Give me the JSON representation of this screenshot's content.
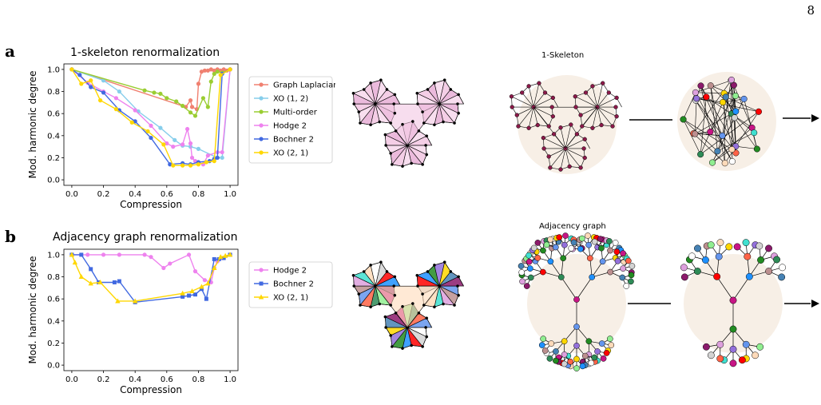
{
  "page_number": "8",
  "panel_a": {
    "label": "a",
    "title": "1-skeleton renormalization",
    "diagram_title": "1-Skeleton",
    "chart_data": {
      "type": "line",
      "title": "1-skeleton renormalization",
      "xlabel": "Compression",
      "ylabel": "Mod. harmonic degree",
      "xlim": [
        -0.05,
        1.05
      ],
      "ylim": [
        -0.05,
        1.05
      ],
      "xticks": [
        "0.0",
        "0.2",
        "0.4",
        "0.6",
        "0.8",
        "1.0"
      ],
      "yticks": [
        "0.0",
        "0.2",
        "0.4",
        "0.6",
        "0.8",
        "1.0"
      ],
      "legend_position": "outside-right",
      "series": [
        {
          "name": "Graph Laplacian",
          "color": "#f08070",
          "marker": "circle",
          "x": [
            0.0,
            0.72,
            0.75,
            0.76,
            0.79,
            0.8,
            0.82,
            0.84,
            0.86,
            0.88,
            0.9,
            0.92,
            0.94,
            0.96,
            0.98,
            1.0
          ],
          "y": [
            1.0,
            0.66,
            0.72,
            0.66,
            0.64,
            0.87,
            0.98,
            0.99,
            0.99,
            1.0,
            0.99,
            1.0,
            0.99,
            1.0,
            0.99,
            1.0
          ]
        },
        {
          "name": "XO (1, 2)",
          "color": "#87ceeb",
          "marker": "circle",
          "x": [
            0.0,
            0.2,
            0.3,
            0.42,
            0.56,
            0.65,
            0.7,
            0.75,
            0.8,
            0.92,
            0.95,
            1.0
          ],
          "y": [
            1.0,
            0.9,
            0.8,
            0.62,
            0.47,
            0.36,
            0.31,
            0.3,
            0.28,
            0.2,
            0.2,
            1.0
          ]
        },
        {
          "name": "Multi-order",
          "color": "#9acd32",
          "marker": "circle",
          "x": [
            0.0,
            0.46,
            0.52,
            0.56,
            0.6,
            0.66,
            0.7,
            0.75,
            0.78,
            0.83,
            0.86,
            0.88,
            0.9,
            0.92,
            0.95,
            1.0
          ],
          "y": [
            1.0,
            0.81,
            0.79,
            0.78,
            0.74,
            0.71,
            0.67,
            0.61,
            0.58,
            0.74,
            0.66,
            0.89,
            0.96,
            0.98,
            0.97,
            1.0
          ]
        },
        {
          "name": "Hodge 2",
          "color": "#ee82ee",
          "marker": "circle",
          "x": [
            0.0,
            0.1,
            0.2,
            0.28,
            0.4,
            0.5,
            0.6,
            0.64,
            0.7,
            0.73,
            0.75,
            0.76,
            0.78,
            0.83,
            0.86,
            0.92,
            0.95,
            1.0
          ],
          "y": [
            1.0,
            0.88,
            0.8,
            0.74,
            0.63,
            0.49,
            0.33,
            0.3,
            0.32,
            0.46,
            0.33,
            0.2,
            0.17,
            0.14,
            0.22,
            0.25,
            0.25,
            1.0
          ]
        },
        {
          "name": "Bochner 2",
          "color": "#4169e1",
          "marker": "circle",
          "x": [
            0.0,
            0.05,
            0.12,
            0.2,
            0.3,
            0.4,
            0.5,
            0.62,
            0.7,
            0.75,
            0.8,
            0.87,
            0.9,
            0.92,
            0.95,
            1.0
          ],
          "y": [
            1.0,
            0.95,
            0.84,
            0.79,
            0.63,
            0.53,
            0.38,
            0.14,
            0.15,
            0.14,
            0.16,
            0.17,
            0.19,
            0.2,
            0.96,
            1.0
          ]
        },
        {
          "name": "XO (2, 1)",
          "color": "#ffd700",
          "marker": "circle",
          "x": [
            0.0,
            0.06,
            0.12,
            0.18,
            0.28,
            0.38,
            0.48,
            0.58,
            0.64,
            0.7,
            0.75,
            0.8,
            0.85,
            0.9,
            0.94,
            1.0
          ],
          "y": [
            1.0,
            0.87,
            0.9,
            0.72,
            0.64,
            0.52,
            0.44,
            0.32,
            0.13,
            0.13,
            0.13,
            0.14,
            0.16,
            0.17,
            0.95,
            1.0
          ]
        }
      ]
    }
  },
  "panel_b": {
    "label": "b",
    "title": "Adjacency graph renormalization",
    "diagram_title": "Adjacency graph",
    "chart_data": {
      "type": "line",
      "title": "Adjacency graph renormalization",
      "xlabel": "Compression",
      "ylabel": "Mod. harmonic degree",
      "xlim": [
        -0.05,
        1.05
      ],
      "ylim": [
        -0.05,
        1.05
      ],
      "xticks": [
        "0.0",
        "0.2",
        "0.4",
        "0.6",
        "0.8",
        "1.0"
      ],
      "yticks": [
        "0.0",
        "0.2",
        "0.4",
        "0.6",
        "0.8",
        "1.0"
      ],
      "legend_position": "outside-right",
      "series": [
        {
          "name": "Hodge 2",
          "color": "#ee82ee",
          "marker": "circle",
          "x": [
            0.0,
            0.1,
            0.2,
            0.3,
            0.46,
            0.5,
            0.58,
            0.62,
            0.74,
            0.78,
            0.84,
            0.88,
            0.9,
            0.92,
            0.95,
            1.0
          ],
          "y": [
            1.0,
            1.0,
            1.0,
            1.0,
            1.0,
            0.98,
            0.88,
            0.92,
            1.0,
            0.85,
            0.77,
            0.75,
            0.88,
            0.94,
            0.97,
            1.0
          ]
        },
        {
          "name": "Bochner 2",
          "color": "#4169e1",
          "marker": "square",
          "x": [
            0.0,
            0.06,
            0.12,
            0.17,
            0.27,
            0.3,
            0.4,
            0.7,
            0.74,
            0.78,
            0.82,
            0.85,
            0.9,
            0.93,
            0.96,
            1.0
          ],
          "y": [
            1.0,
            1.0,
            0.87,
            0.75,
            0.75,
            0.76,
            0.57,
            0.62,
            0.63,
            0.64,
            0.69,
            0.6,
            0.96,
            0.96,
            0.97,
            1.0
          ]
        },
        {
          "name": "XO (2, 1)",
          "color": "#ffd700",
          "marker": "triangle",
          "x": [
            0.0,
            0.02,
            0.06,
            0.12,
            0.18,
            0.29,
            0.4,
            0.7,
            0.76,
            0.82,
            0.86,
            0.9,
            0.94,
            0.97,
            1.0
          ],
          "y": [
            1.0,
            0.93,
            0.8,
            0.74,
            0.75,
            0.58,
            0.58,
            0.65,
            0.67,
            0.71,
            0.74,
            0.88,
            0.98,
            0.99,
            1.0
          ]
        }
      ]
    }
  }
}
